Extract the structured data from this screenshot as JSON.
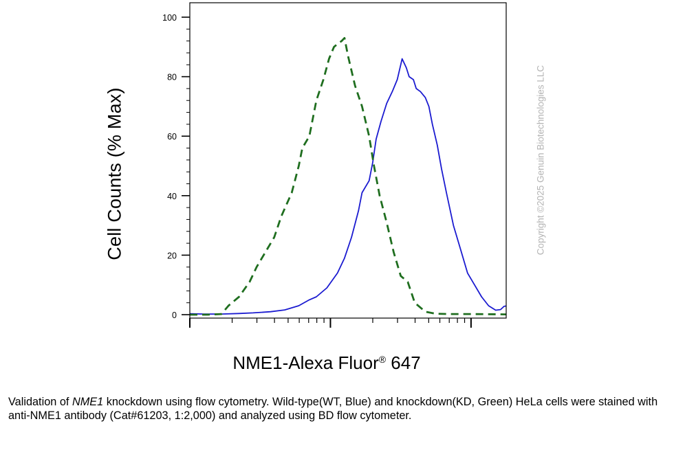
{
  "chart_data": {
    "type": "line",
    "ylabel": "Cell Counts (% Max)",
    "xlabel": {
      "name": "NME1-Alexa Fluor",
      "registered": "®",
      "number": " 647"
    },
    "ylim": [
      0,
      100
    ],
    "y_ticks": [
      "0",
      "20",
      "40",
      "60",
      "80",
      "100"
    ],
    "xlim": [
      0,
      4.5
    ],
    "x_scale": "log",
    "x_tick_labels": [],
    "grid": false,
    "series": [
      {
        "color": "#1a1ad0",
        "style": "solid",
        "points": [
          [
            0.0,
            0.3
          ],
          [
            0.2,
            0.2
          ],
          [
            0.45,
            0.2
          ],
          [
            0.7,
            0.4
          ],
          [
            0.9,
            0.6
          ],
          [
            1.15,
            1.0
          ],
          [
            1.35,
            1.6
          ],
          [
            1.55,
            3
          ],
          [
            1.7,
            5
          ],
          [
            1.8,
            6
          ],
          [
            1.95,
            9
          ],
          [
            2.1,
            14
          ],
          [
            2.2,
            19
          ],
          [
            2.3,
            26
          ],
          [
            2.4,
            35
          ],
          [
            2.45,
            41
          ],
          [
            2.55,
            45
          ],
          [
            2.6,
            51
          ],
          [
            2.65,
            59
          ],
          [
            2.72,
            65
          ],
          [
            2.8,
            71
          ],
          [
            2.88,
            75
          ],
          [
            2.95,
            79
          ],
          [
            3.02,
            86
          ],
          [
            3.08,
            83
          ],
          [
            3.12,
            80
          ],
          [
            3.18,
            79
          ],
          [
            3.22,
            76
          ],
          [
            3.28,
            75
          ],
          [
            3.35,
            73
          ],
          [
            3.4,
            70
          ],
          [
            3.45,
            64
          ],
          [
            3.52,
            57
          ],
          [
            3.58,
            49
          ],
          [
            3.65,
            41
          ],
          [
            3.75,
            30
          ],
          [
            3.85,
            22
          ],
          [
            3.95,
            14
          ],
          [
            4.05,
            10
          ],
          [
            4.15,
            6
          ],
          [
            4.25,
            3
          ],
          [
            4.35,
            1.5
          ],
          [
            4.42,
            1.7
          ],
          [
            4.47,
            2.8
          ],
          [
            4.5,
            2.9
          ]
        ]
      },
      {
        "color": "#1f6e1f",
        "style": "dashed",
        "points": [
          [
            0.0,
            0.0
          ],
          [
            0.25,
            0.0
          ],
          [
            0.45,
            0.2
          ],
          [
            0.55,
            3
          ],
          [
            0.7,
            6
          ],
          [
            0.85,
            11
          ],
          [
            0.95,
            16
          ],
          [
            1.05,
            20
          ],
          [
            1.2,
            26
          ],
          [
            1.3,
            33
          ],
          [
            1.45,
            41
          ],
          [
            1.55,
            50
          ],
          [
            1.6,
            56
          ],
          [
            1.7,
            60
          ],
          [
            1.8,
            72
          ],
          [
            1.9,
            79
          ],
          [
            1.98,
            86
          ],
          [
            2.05,
            90
          ],
          [
            2.1,
            91
          ],
          [
            2.16,
            92
          ],
          [
            2.2,
            93
          ],
          [
            2.25,
            87
          ],
          [
            2.35,
            77
          ],
          [
            2.45,
            70
          ],
          [
            2.55,
            60
          ],
          [
            2.62,
            50
          ],
          [
            2.7,
            40
          ],
          [
            2.8,
            31
          ],
          [
            2.9,
            21
          ],
          [
            3.0,
            13
          ],
          [
            3.1,
            11
          ],
          [
            3.2,
            4
          ],
          [
            3.35,
            1
          ],
          [
            3.5,
            0.3
          ],
          [
            3.7,
            0.2
          ],
          [
            4.0,
            0.2
          ],
          [
            4.5,
            0.1
          ]
        ]
      }
    ]
  },
  "watermark": "Copyright ©2025 Genuin Biotechnologies LLC",
  "caption": {
    "prefix": "Validation of ",
    "gene": "NME1",
    "rest": " knockdown using flow cytometry. Wild-type(WT, Blue) and knockdown(KD, Green) HeLa cells were stained with anti-NME1 antibody (Cat#61203, 1:2,000) and analyzed using BD flow cytometer."
  },
  "colors": {
    "axis": "#000000",
    "watermark": "#b4b4b4"
  }
}
